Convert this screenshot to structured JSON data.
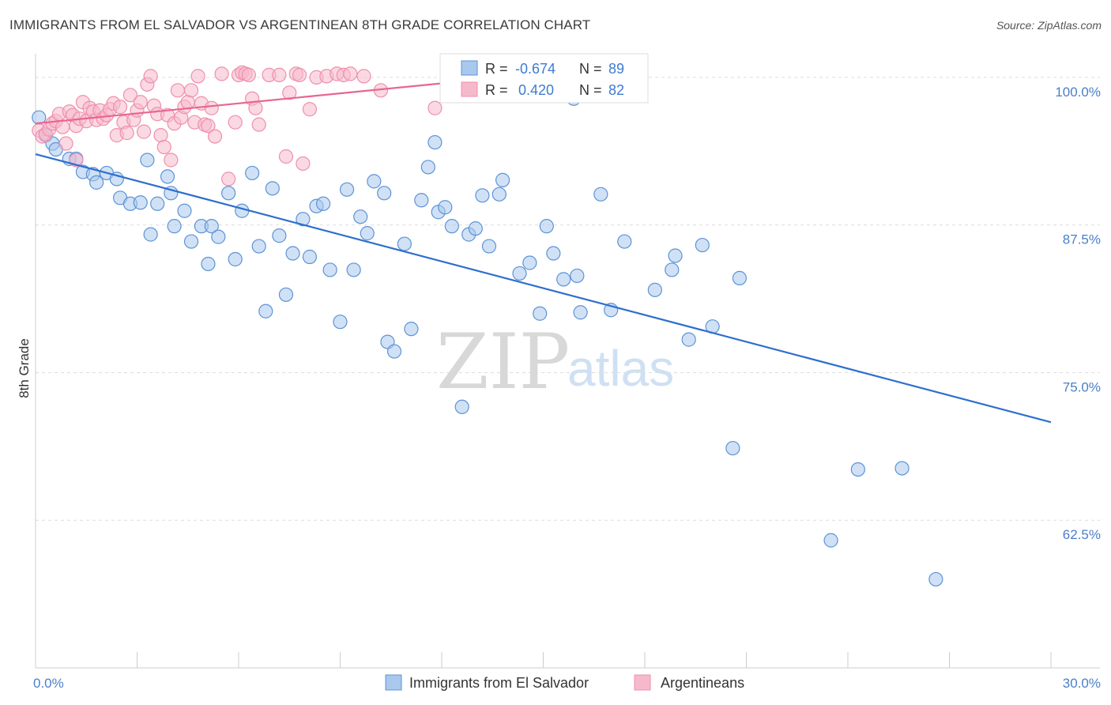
{
  "title": "IMMIGRANTS FROM EL SALVADOR VS ARGENTINEAN 8TH GRADE CORRELATION CHART",
  "source": "Source: ZipAtlas.com",
  "watermark": {
    "zip": "ZIP",
    "atlas": "atlas"
  },
  "colors": {
    "blue_fill": "#a9c8ee",
    "blue_stroke": "#5d93d6",
    "blue_line": "#2d6fcd",
    "pink_fill": "#f6b9cc",
    "pink_stroke": "#ef8fae",
    "pink_line": "#e8668f",
    "grid": "#dddddd",
    "tick_text": "#4a7fc8"
  },
  "legend": {
    "rows": [
      {
        "r_label": "R =",
        "r_value": "-0.674",
        "n_label": "N =",
        "n_value": "89",
        "series": "blue"
      },
      {
        "r_label": "R =",
        "r_value": "0.420",
        "n_label": "N =",
        "n_value": "82",
        "series": "pink"
      }
    ]
  },
  "bottom_legend": [
    "Immigrants from El Salvador",
    "Argentineans"
  ],
  "chart_data": {
    "type": "scatter",
    "title": "IMMIGRANTS FROM EL SALVADOR VS ARGENTINEAN 8TH GRADE CORRELATION CHART",
    "xlabel": "",
    "ylabel": "8th Grade",
    "xlim": [
      0,
      30
    ],
    "ylim": [
      50,
      102
    ],
    "x_tick_labels": [
      "0.0%",
      "30.0%"
    ],
    "y_ticks": [
      62.5,
      75.0,
      87.5,
      100.0
    ],
    "y_tick_labels": [
      "62.5%",
      "75.0%",
      "87.5%",
      "100.0%"
    ],
    "grid": true,
    "legend_position": "top-center",
    "series": [
      {
        "name": "Immigrants from El Salvador",
        "color": "#a9c8ee",
        "trend": {
          "x": [
            0,
            30
          ],
          "y": [
            93.5,
            70.8
          ]
        },
        "points": [
          [
            0.1,
            96.6
          ],
          [
            0.3,
            95.1
          ],
          [
            0.5,
            94.4
          ],
          [
            0.6,
            93.9
          ],
          [
            1.0,
            93.1
          ],
          [
            1.2,
            93.1
          ],
          [
            1.4,
            92.0
          ],
          [
            1.7,
            91.8
          ],
          [
            1.8,
            91.1
          ],
          [
            2.1,
            91.9
          ],
          [
            2.4,
            91.4
          ],
          [
            2.5,
            89.8
          ],
          [
            2.8,
            89.3
          ],
          [
            3.1,
            89.4
          ],
          [
            3.4,
            86.7
          ],
          [
            3.3,
            93.0
          ],
          [
            3.6,
            89.3
          ],
          [
            3.9,
            91.6
          ],
          [
            4.0,
            90.2
          ],
          [
            4.1,
            87.4
          ],
          [
            4.4,
            88.7
          ],
          [
            4.6,
            86.1
          ],
          [
            4.9,
            87.4
          ],
          [
            5.1,
            84.2
          ],
          [
            5.2,
            87.4
          ],
          [
            5.4,
            86.5
          ],
          [
            5.7,
            90.2
          ],
          [
            5.9,
            84.6
          ],
          [
            6.1,
            88.7
          ],
          [
            6.4,
            91.9
          ],
          [
            6.6,
            85.7
          ],
          [
            6.8,
            80.2
          ],
          [
            7.0,
            90.6
          ],
          [
            7.2,
            86.6
          ],
          [
            7.4,
            81.6
          ],
          [
            7.6,
            85.1
          ],
          [
            7.9,
            88.0
          ],
          [
            8.1,
            84.8
          ],
          [
            8.3,
            89.1
          ],
          [
            8.5,
            89.3
          ],
          [
            8.7,
            83.7
          ],
          [
            9.0,
            79.3
          ],
          [
            9.2,
            90.5
          ],
          [
            9.4,
            83.7
          ],
          [
            9.6,
            88.2
          ],
          [
            9.8,
            86.8
          ],
          [
            10.0,
            91.2
          ],
          [
            10.3,
            90.2
          ],
          [
            10.4,
            77.6
          ],
          [
            10.6,
            76.8
          ],
          [
            10.9,
            85.9
          ],
          [
            11.1,
            78.7
          ],
          [
            11.4,
            89.6
          ],
          [
            11.6,
            92.4
          ],
          [
            11.8,
            94.5
          ],
          [
            11.9,
            88.6
          ],
          [
            12.1,
            89.0
          ],
          [
            12.3,
            87.4
          ],
          [
            12.6,
            72.1
          ],
          [
            12.8,
            86.7
          ],
          [
            13.0,
            87.2
          ],
          [
            13.2,
            90.0
          ],
          [
            13.4,
            85.7
          ],
          [
            13.7,
            90.1
          ],
          [
            13.8,
            91.3
          ],
          [
            14.3,
            83.4
          ],
          [
            14.6,
            84.3
          ],
          [
            14.9,
            80.0
          ],
          [
            15.1,
            87.4
          ],
          [
            15.3,
            85.1
          ],
          [
            15.6,
            82.9
          ],
          [
            15.9,
            98.2
          ],
          [
            16.0,
            83.2
          ],
          [
            16.1,
            80.1
          ],
          [
            16.7,
            90.1
          ],
          [
            17.0,
            80.3
          ],
          [
            17.4,
            86.1
          ],
          [
            18.3,
            82.0
          ],
          [
            18.8,
            83.7
          ],
          [
            18.9,
            84.9
          ],
          [
            19.3,
            77.8
          ],
          [
            19.7,
            85.8
          ],
          [
            20.0,
            78.9
          ],
          [
            20.8,
            83.0
          ],
          [
            20.6,
            68.6
          ],
          [
            23.5,
            60.8
          ],
          [
            24.3,
            66.8
          ],
          [
            25.6,
            66.9
          ],
          [
            26.6,
            57.5
          ]
        ]
      },
      {
        "name": "Argentineans",
        "color": "#f6b9cc",
        "trend": {
          "x": [
            0,
            14.5
          ],
          "y": [
            96.1,
            100.2
          ]
        },
        "points": [
          [
            0.1,
            95.5
          ],
          [
            0.2,
            95.0
          ],
          [
            0.3,
            95.2
          ],
          [
            0.4,
            95.6
          ],
          [
            0.5,
            96.1
          ],
          [
            0.6,
            96.3
          ],
          [
            0.7,
            96.9
          ],
          [
            0.8,
            95.8
          ],
          [
            0.9,
            94.4
          ],
          [
            1.0,
            97.1
          ],
          [
            1.1,
            96.8
          ],
          [
            1.2,
            95.9
          ],
          [
            1.3,
            96.5
          ],
          [
            1.4,
            97.9
          ],
          [
            1.5,
            96.3
          ],
          [
            1.6,
            97.4
          ],
          [
            1.7,
            97.1
          ],
          [
            1.8,
            96.4
          ],
          [
            1.9,
            97.2
          ],
          [
            2.0,
            96.5
          ],
          [
            2.1,
            96.8
          ],
          [
            2.2,
            97.3
          ],
          [
            2.3,
            97.8
          ],
          [
            2.4,
            95.1
          ],
          [
            2.5,
            97.5
          ],
          [
            2.6,
            96.2
          ],
          [
            2.7,
            95.3
          ],
          [
            2.8,
            98.5
          ],
          [
            2.9,
            96.4
          ],
          [
            3.0,
            97.2
          ],
          [
            3.1,
            97.9
          ],
          [
            3.2,
            95.4
          ],
          [
            3.3,
            99.4
          ],
          [
            3.4,
            100.1
          ],
          [
            3.5,
            97.6
          ],
          [
            3.6,
            96.9
          ],
          [
            3.7,
            95.1
          ],
          [
            3.8,
            94.1
          ],
          [
            3.9,
            96.8
          ],
          [
            4.0,
            93.0
          ],
          [
            4.1,
            96.1
          ],
          [
            4.2,
            98.9
          ],
          [
            4.3,
            96.6
          ],
          [
            4.4,
            97.5
          ],
          [
            4.5,
            97.9
          ],
          [
            4.6,
            98.9
          ],
          [
            4.7,
            96.2
          ],
          [
            4.8,
            100.1
          ],
          [
            4.9,
            97.8
          ],
          [
            5.0,
            96.0
          ],
          [
            5.1,
            95.9
          ],
          [
            5.2,
            97.4
          ],
          [
            5.3,
            95.0
          ],
          [
            5.5,
            100.3
          ],
          [
            5.7,
            91.4
          ],
          [
            5.9,
            96.2
          ],
          [
            6.0,
            100.2
          ],
          [
            6.1,
            100.4
          ],
          [
            6.2,
            100.3
          ],
          [
            6.3,
            100.2
          ],
          [
            6.4,
            98.2
          ],
          [
            6.5,
            97.4
          ],
          [
            6.6,
            96.0
          ],
          [
            6.9,
            100.2
          ],
          [
            7.2,
            100.2
          ],
          [
            7.4,
            93.3
          ],
          [
            7.5,
            98.7
          ],
          [
            7.7,
            100.3
          ],
          [
            7.8,
            100.2
          ],
          [
            7.9,
            92.7
          ],
          [
            8.1,
            97.3
          ],
          [
            8.3,
            100.0
          ],
          [
            8.6,
            100.1
          ],
          [
            8.9,
            100.3
          ],
          [
            9.1,
            100.2
          ],
          [
            9.3,
            100.3
          ],
          [
            9.7,
            100.1
          ],
          [
            10.2,
            98.9
          ],
          [
            11.8,
            97.4
          ],
          [
            12.4,
            98.9
          ],
          [
            14.5,
            100.2
          ],
          [
            1.2,
            93.0
          ]
        ]
      }
    ]
  }
}
